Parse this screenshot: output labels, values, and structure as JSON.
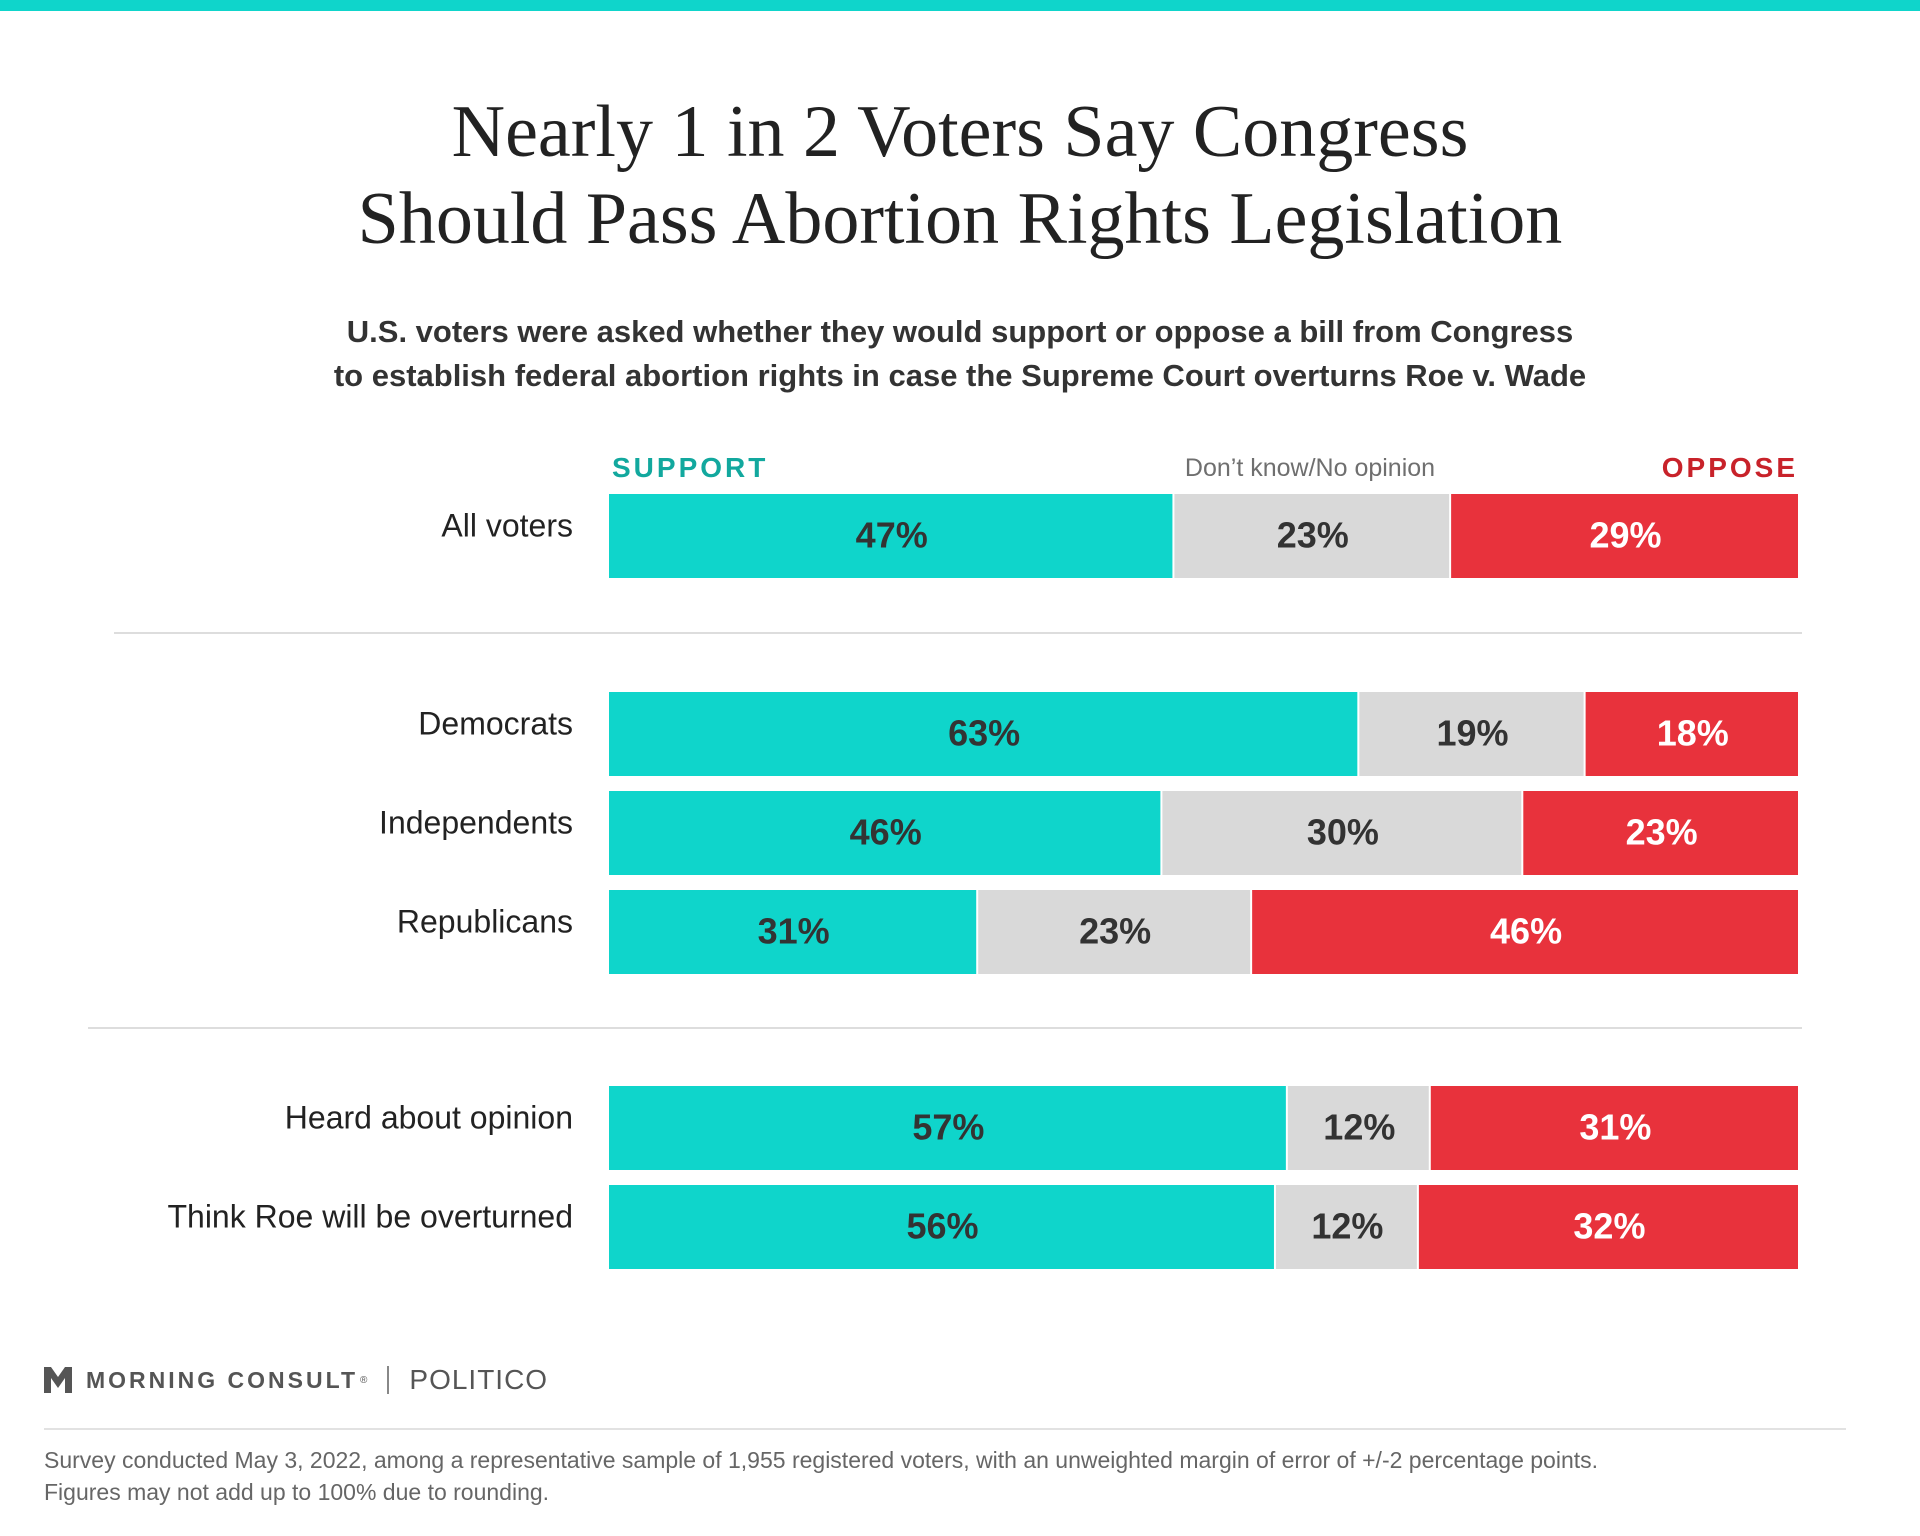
{
  "colors": {
    "support": "#0fd5cb",
    "dont_know": "#d9d9d9",
    "oppose": "#e8323c",
    "support_text": "#12a89e",
    "oppose_text": "#c8222a",
    "dark_label": "#333333",
    "light_label": "#ffffff"
  },
  "title": {
    "line1": "Nearly 1 in 2 Voters Say Congress",
    "line2": "Should Pass Abortion Rights Legislation"
  },
  "subtitle": {
    "line1": "U.S. voters were asked whether they would support or oppose a bill from Congress",
    "line2": "to establish federal abortion rights in case the Supreme Court overturns Roe v. Wade"
  },
  "legend": {
    "support": "SUPPORT",
    "dont_know": "Don’t know/No opinion",
    "oppose": "OPPOSE"
  },
  "chart_data": {
    "type": "bar",
    "orientation": "horizontal",
    "stacked": true,
    "value_unit": "%",
    "categories": [
      "All voters",
      "Democrats",
      "Independents",
      "Republicans",
      "Heard about opinion",
      "Think Roe will be overturned"
    ],
    "groups": [
      [
        "All voters"
      ],
      [
        "Democrats",
        "Independents",
        "Republicans"
      ],
      [
        "Heard about opinion",
        "Think Roe will be overturned"
      ]
    ],
    "series": [
      {
        "name": "SUPPORT",
        "values": [
          47,
          63,
          46,
          31,
          57,
          56
        ],
        "labels": [
          "47%",
          "63%",
          "46%",
          "31%",
          "57%",
          "56%"
        ]
      },
      {
        "name": "Don’t know/No opinion",
        "values": [
          23,
          19,
          30,
          23,
          12,
          12
        ],
        "labels": [
          "23%",
          "19%",
          "30%",
          "23%",
          "12%",
          "12%"
        ]
      },
      {
        "name": "OPPOSE",
        "values": [
          29,
          18,
          23,
          46,
          31,
          32
        ],
        "labels": [
          "29%",
          "18%",
          "23%",
          "46%",
          "31%",
          "32%"
        ]
      }
    ],
    "xlim": [
      0,
      100
    ],
    "grid": false,
    "legend_position": "top"
  },
  "footer": {
    "brand1": "MORNING CONSULT",
    "brand1_mark": "®",
    "brand2": "POLITICO",
    "note_line1": "Survey conducted May 3, 2022, among a representative sample of 1,955 registered voters, with an unweighted margin of error of +/-2 percentage points.",
    "note_line2": "Figures may not add up to 100% due to rounding."
  }
}
